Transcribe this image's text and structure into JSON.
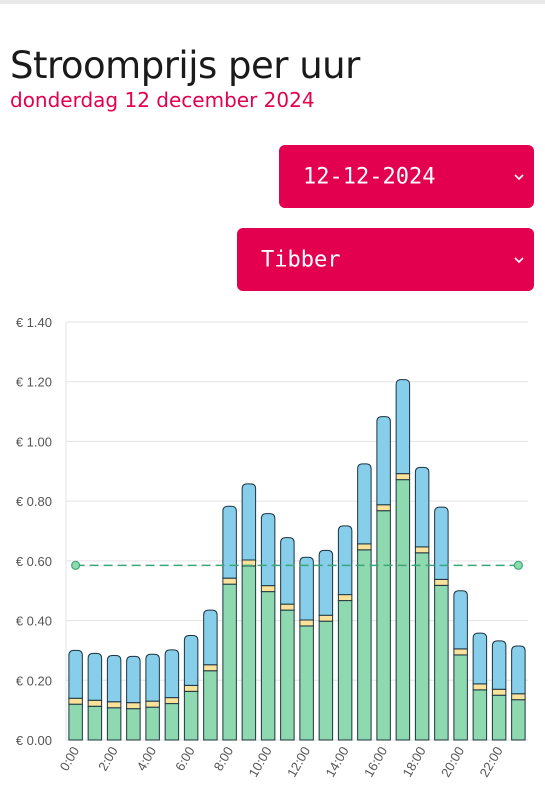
{
  "header": {
    "title": "Stroomprijs per uur",
    "subtitle": "donderdag 12 december 2024"
  },
  "controls": {
    "date_value": "12-12-2024",
    "supplier_value": "Tibber"
  },
  "colors": {
    "accent": "#e3004f",
    "base_price": "#8ed9b0",
    "surcharge": "#fbe29a",
    "tax": "#87ceeb",
    "average_line": "#3aa876"
  },
  "chart_data": {
    "type": "bar",
    "stacked": true,
    "categories": [
      "0:00",
      "1:00",
      "2:00",
      "3:00",
      "4:00",
      "5:00",
      "6:00",
      "7:00",
      "8:00",
      "9:00",
      "10:00",
      "11:00",
      "12:00",
      "13:00",
      "14:00",
      "15:00",
      "16:00",
      "17:00",
      "18:00",
      "19:00",
      "20:00",
      "21:00",
      "22:00",
      "23:00"
    ],
    "x_tick_labels": [
      "0:00",
      "2:00",
      "4:00",
      "6:00",
      "8:00",
      "10:00",
      "12:00",
      "14:00",
      "16:00",
      "18:00",
      "20:00",
      "22:00"
    ],
    "series": [
      {
        "color": "#8ed9b0",
        "values": [
          0.12,
          0.113,
          0.108,
          0.105,
          0.11,
          0.122,
          0.163,
          0.232,
          0.522,
          0.583,
          0.497,
          0.435,
          0.382,
          0.398,
          0.467,
          0.637,
          0.768,
          0.872,
          0.627,
          0.518,
          0.285,
          0.168,
          0.15,
          0.135
        ]
      },
      {
        "color": "#fbe29a",
        "values": [
          0.02,
          0.02,
          0.02,
          0.02,
          0.02,
          0.02,
          0.02,
          0.02,
          0.02,
          0.02,
          0.02,
          0.02,
          0.02,
          0.02,
          0.02,
          0.02,
          0.02,
          0.02,
          0.02,
          0.02,
          0.02,
          0.02,
          0.02,
          0.02
        ]
      },
      {
        "color": "#87ceeb",
        "values": [
          0.16,
          0.157,
          0.155,
          0.155,
          0.157,
          0.16,
          0.167,
          0.183,
          0.241,
          0.255,
          0.241,
          0.223,
          0.21,
          0.217,
          0.23,
          0.268,
          0.295,
          0.315,
          0.266,
          0.242,
          0.195,
          0.17,
          0.162,
          0.16
        ]
      }
    ],
    "average": 0.585,
    "ylim": [
      0,
      1.4
    ],
    "y_ticks": [
      0,
      0.2,
      0.4,
      0.6,
      0.8,
      1.0,
      1.2,
      1.4
    ],
    "y_tick_labels": [
      "€ 0.00",
      "€ 0.20",
      "€ 0.40",
      "€ 0.60",
      "€ 0.80",
      "€ 1.00",
      "€ 1.20",
      "€ 1.40"
    ],
    "grid": true,
    "legend": "none"
  }
}
